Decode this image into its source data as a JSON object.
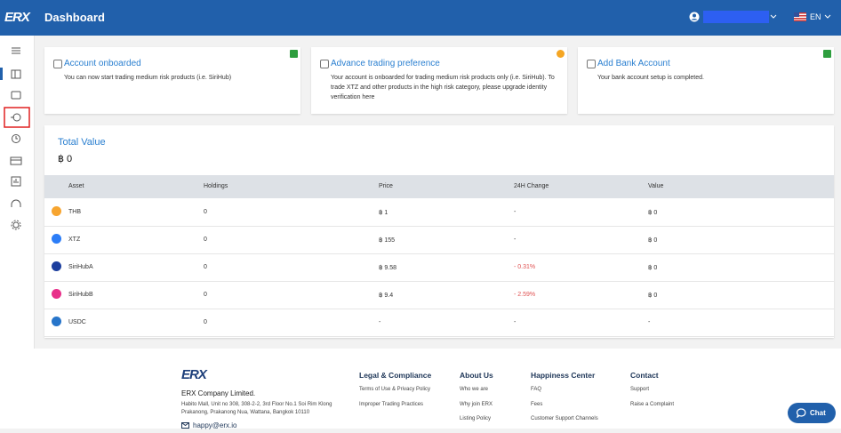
{
  "header": {
    "logo": "ERX",
    "title": "Dashboard",
    "language": "EN"
  },
  "cards": [
    {
      "title": "Account onboarded",
      "text": "You can now start trading medium risk products (i.e. SiriHub)",
      "status_color": "#2e9e3e"
    },
    {
      "title": "Advance trading preference",
      "text": "Your account is onboarded for trading medium risk products only (i.e. SiriHub). To trade XTZ and other products in the high risk category, please upgrade identity verification here",
      "status_color": "#f5a623"
    },
    {
      "title": "Add Bank Account",
      "text": "Your bank account setup is completed.",
      "status_color": "#2e9e3e"
    }
  ],
  "portfolio": {
    "title": "Total Value",
    "total": "฿ 0",
    "columns": [
      "Asset",
      "Holdings",
      "Price",
      "24H Change",
      "Value"
    ],
    "rows": [
      {
        "cells": [
          "THB",
          "0",
          "฿ 1",
          "-",
          "฿ 0"
        ],
        "icon_color": "#f7a530"
      },
      {
        "cells": [
          "XTZ",
          "0",
          "฿ 155",
          "-",
          "฿ 0"
        ],
        "icon_color": "#2c7df7"
      },
      {
        "cells": [
          "SiriHubA",
          "0",
          "฿ 9.58",
          "- 0.31%",
          "฿ 0"
        ],
        "icon_color": "#1d3f9e",
        "change_color": "#e05252"
      },
      {
        "cells": [
          "SiriHubB",
          "0",
          "฿ 9.4",
          "- 2.59%",
          "฿ 0"
        ],
        "icon_color": "#e8308a",
        "change_color": "#e05252"
      },
      {
        "cells": [
          "USDC",
          "0",
          "-",
          "-",
          "-"
        ],
        "icon_color": "#2775ca"
      }
    ]
  },
  "footer": {
    "logo": "ERX",
    "company": "ERX Company Limited.",
    "address": [
      "Habito Mall, Unit no 308, 308-2-2, 3rd Floor No.1 Soi Rim Klong",
      "Prakanong, Prakanong Nua, Wattana, Bangkok 10110"
    ],
    "email": "happy@erx.io",
    "columns": [
      {
        "title": "Legal & Compliance",
        "links": [
          "Terms of Use & Privacy Policy",
          "Improper Trading Practices"
        ]
      },
      {
        "title": "About Us",
        "links": [
          "Who we are",
          "Why join ERX",
          "Listing Policy"
        ]
      },
      {
        "title": "Happiness Center",
        "links": [
          "FAQ",
          "Fees",
          "Customer Support Channels"
        ]
      },
      {
        "title": "Contact",
        "links": [
          "Support",
          "Raise a Complaint"
        ]
      }
    ]
  },
  "chat": "Chat"
}
